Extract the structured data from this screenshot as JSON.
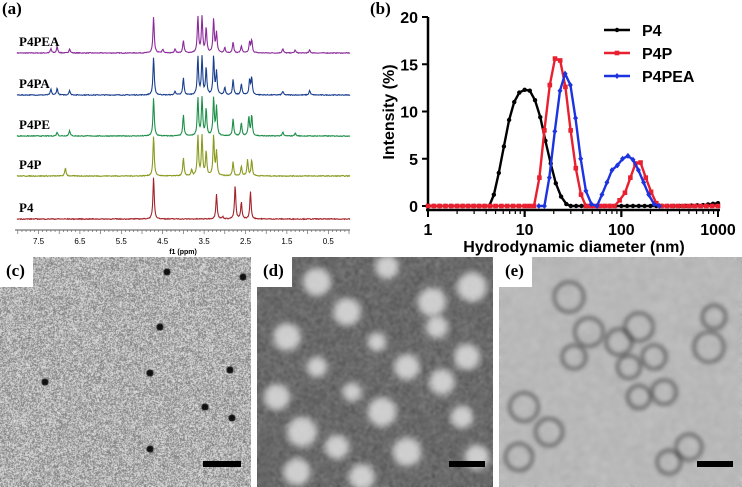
{
  "panels": {
    "a": {
      "label": "(a)"
    },
    "b": {
      "label": "(b)"
    },
    "c": {
      "label": "(c)"
    },
    "d": {
      "label": "(d)"
    },
    "e": {
      "label": "(e)"
    }
  },
  "chart_data": [
    {
      "type": "line",
      "panel": "(a)",
      "xlabel": "f1 (ppm)",
      "xlim": [
        8.0,
        0.0
      ],
      "x_reversed": true,
      "xticks": [
        "7.5",
        "6.5",
        "5.5",
        "4.5",
        "3.5",
        "2.5",
        "1.5",
        "0.5"
      ],
      "grid": false,
      "series": [
        {
          "name": "P4PEA",
          "color": "#8b2a9a",
          "peaks": [
            [
              7.2,
              0.12
            ],
            [
              7.05,
              0.18
            ],
            [
              6.75,
              0.12
            ],
            [
              4.72,
              1.0
            ],
            [
              4.5,
              0.1
            ],
            [
              4.2,
              0.12
            ],
            [
              4.0,
              0.35
            ],
            [
              3.65,
              1.0
            ],
            [
              3.55,
              1.0
            ],
            [
              3.45,
              0.7
            ],
            [
              3.27,
              0.95
            ],
            [
              3.2,
              0.55
            ],
            [
              3.0,
              0.15
            ],
            [
              2.8,
              0.3
            ],
            [
              2.6,
              0.2
            ],
            [
              2.4,
              0.3
            ],
            [
              2.35,
              0.35
            ],
            [
              1.6,
              0.12
            ],
            [
              1.3,
              0.08
            ],
            [
              0.95,
              0.08
            ]
          ]
        },
        {
          "name": "P4PA",
          "color": "#1a3f8f",
          "peaks": [
            [
              7.2,
              0.15
            ],
            [
              7.05,
              0.18
            ],
            [
              6.75,
              0.12
            ],
            [
              4.72,
              1.0
            ],
            [
              4.2,
              0.1
            ],
            [
              4.0,
              0.45
            ],
            [
              3.65,
              1.0
            ],
            [
              3.55,
              1.0
            ],
            [
              3.45,
              0.7
            ],
            [
              3.27,
              1.0
            ],
            [
              3.2,
              0.6
            ],
            [
              3.0,
              0.2
            ],
            [
              2.8,
              0.4
            ],
            [
              2.6,
              0.3
            ],
            [
              2.4,
              0.4
            ],
            [
              2.35,
              0.45
            ],
            [
              1.6,
              0.1
            ],
            [
              0.95,
              0.12
            ]
          ]
        },
        {
          "name": "P4PE",
          "color": "#1f8f4a",
          "peaks": [
            [
              7.05,
              0.1
            ],
            [
              6.75,
              0.15
            ],
            [
              4.72,
              1.0
            ],
            [
              4.0,
              0.55
            ],
            [
              3.65,
              1.0
            ],
            [
              3.55,
              1.0
            ],
            [
              3.45,
              0.7
            ],
            [
              3.27,
              1.0
            ],
            [
              3.2,
              0.75
            ],
            [
              2.8,
              0.45
            ],
            [
              2.6,
              0.35
            ],
            [
              2.42,
              0.5
            ],
            [
              2.35,
              0.55
            ],
            [
              1.6,
              0.1
            ],
            [
              1.3,
              0.08
            ]
          ]
        },
        {
          "name": "P4P",
          "color": "#8a9a1e",
          "peaks": [
            [
              6.85,
              0.2
            ],
            [
              4.72,
              1.0
            ],
            [
              4.0,
              0.45
            ],
            [
              3.8,
              0.15
            ],
            [
              3.65,
              1.0
            ],
            [
              3.55,
              1.0
            ],
            [
              3.45,
              0.6
            ],
            [
              3.27,
              1.0
            ],
            [
              3.2,
              0.6
            ],
            [
              2.8,
              0.35
            ],
            [
              2.6,
              0.25
            ],
            [
              2.45,
              0.4
            ],
            [
              2.35,
              0.4
            ]
          ]
        },
        {
          "name": "P4",
          "color": "#a3232a",
          "peaks": [
            [
              4.72,
              1.0
            ],
            [
              3.2,
              0.6
            ],
            [
              3.05,
              0.05
            ],
            [
              2.75,
              0.8
            ],
            [
              2.6,
              0.4
            ],
            [
              2.38,
              0.65
            ]
          ]
        }
      ]
    },
    {
      "type": "line",
      "panel": "(b)",
      "xlabel": "Hydrodynamic diameter (nm)",
      "ylabel": "Intensity (%)",
      "xscale": "log",
      "xlim": [
        1,
        1000
      ],
      "ylim": [
        0,
        20
      ],
      "xticks": [
        "1",
        "10",
        "100",
        "1000"
      ],
      "yticks": [
        "0",
        "5",
        "10",
        "15",
        "20"
      ],
      "grid": false,
      "legend_position": "top-right",
      "series": [
        {
          "name": "P4",
          "color": "#000000",
          "marker": "circle",
          "points": [
            [
              1,
              0
            ],
            [
              1.5,
              0
            ],
            [
              2,
              0
            ],
            [
              3,
              0
            ],
            [
              4.3,
              0
            ],
            [
              4.8,
              1.2
            ],
            [
              5.4,
              3.5
            ],
            [
              6.1,
              6.3
            ],
            [
              6.9,
              9.1
            ],
            [
              7.8,
              11.0
            ],
            [
              8.8,
              12.0
            ],
            [
              10,
              12.3
            ],
            [
              11.3,
              12.2
            ],
            [
              12.8,
              11.2
            ],
            [
              14.5,
              9.4
            ],
            [
              16.4,
              6.9
            ],
            [
              18.6,
              4.5
            ],
            [
              21,
              2.4
            ],
            [
              23.8,
              1.0
            ],
            [
              27,
              0.2
            ],
            [
              30,
              0
            ],
            [
              50,
              0
            ],
            [
              100,
              0
            ],
            [
              200,
              0
            ],
            [
              400,
              0
            ],
            [
              700,
              0.1
            ],
            [
              1000,
              0.3
            ]
          ]
        },
        {
          "name": "P4P",
          "color": "#e8202f",
          "marker": "square",
          "points": [
            [
              1,
              0
            ],
            [
              2,
              0
            ],
            [
              5,
              0
            ],
            [
              10,
              0
            ],
            [
              12.5,
              0
            ],
            [
              14.2,
              3.0
            ],
            [
              16,
              8.0
            ],
            [
              18.2,
              12.8
            ],
            [
              20.6,
              15.6
            ],
            [
              23.3,
              15.4
            ],
            [
              26.4,
              12.6
            ],
            [
              29.9,
              8.0
            ],
            [
              33.8,
              4.0
            ],
            [
              38.3,
              1.2
            ],
            [
              43,
              0
            ],
            [
              60,
              0
            ],
            [
              85,
              0
            ],
            [
              96,
              0.6
            ],
            [
              109,
              1.4
            ],
            [
              124,
              3.0
            ],
            [
              140,
              4.5
            ],
            [
              158,
              4.6
            ],
            [
              179,
              3.0
            ],
            [
              203,
              1.5
            ],
            [
              230,
              0.3
            ],
            [
              260,
              0
            ],
            [
              500,
              0
            ],
            [
              1000,
              0
            ]
          ]
        },
        {
          "name": "P4PEA",
          "color": "#1d33e0",
          "marker": "diamond",
          "points": [
            [
              14,
              0
            ],
            [
              16,
              0
            ],
            [
              18,
              3.0
            ],
            [
              20.5,
              7.9
            ],
            [
              23.2,
              12.2
            ],
            [
              26.2,
              14.0
            ],
            [
              29.7,
              12.8
            ],
            [
              33.6,
              9.3
            ],
            [
              38,
              5.0
            ],
            [
              43,
              1.6
            ],
            [
              49,
              0.2
            ],
            [
              56,
              0
            ],
            [
              63,
              1.2
            ],
            [
              71,
              2.5
            ],
            [
              80,
              3.8
            ],
            [
              91,
              4.3
            ],
            [
              103,
              5.0
            ],
            [
              117,
              5.3
            ],
            [
              132,
              4.9
            ],
            [
              150,
              3.8
            ],
            [
              170,
              2.5
            ],
            [
              192,
              1.2
            ],
            [
              218,
              0.2
            ],
            [
              247,
              0
            ]
          ]
        }
      ]
    }
  ]
}
